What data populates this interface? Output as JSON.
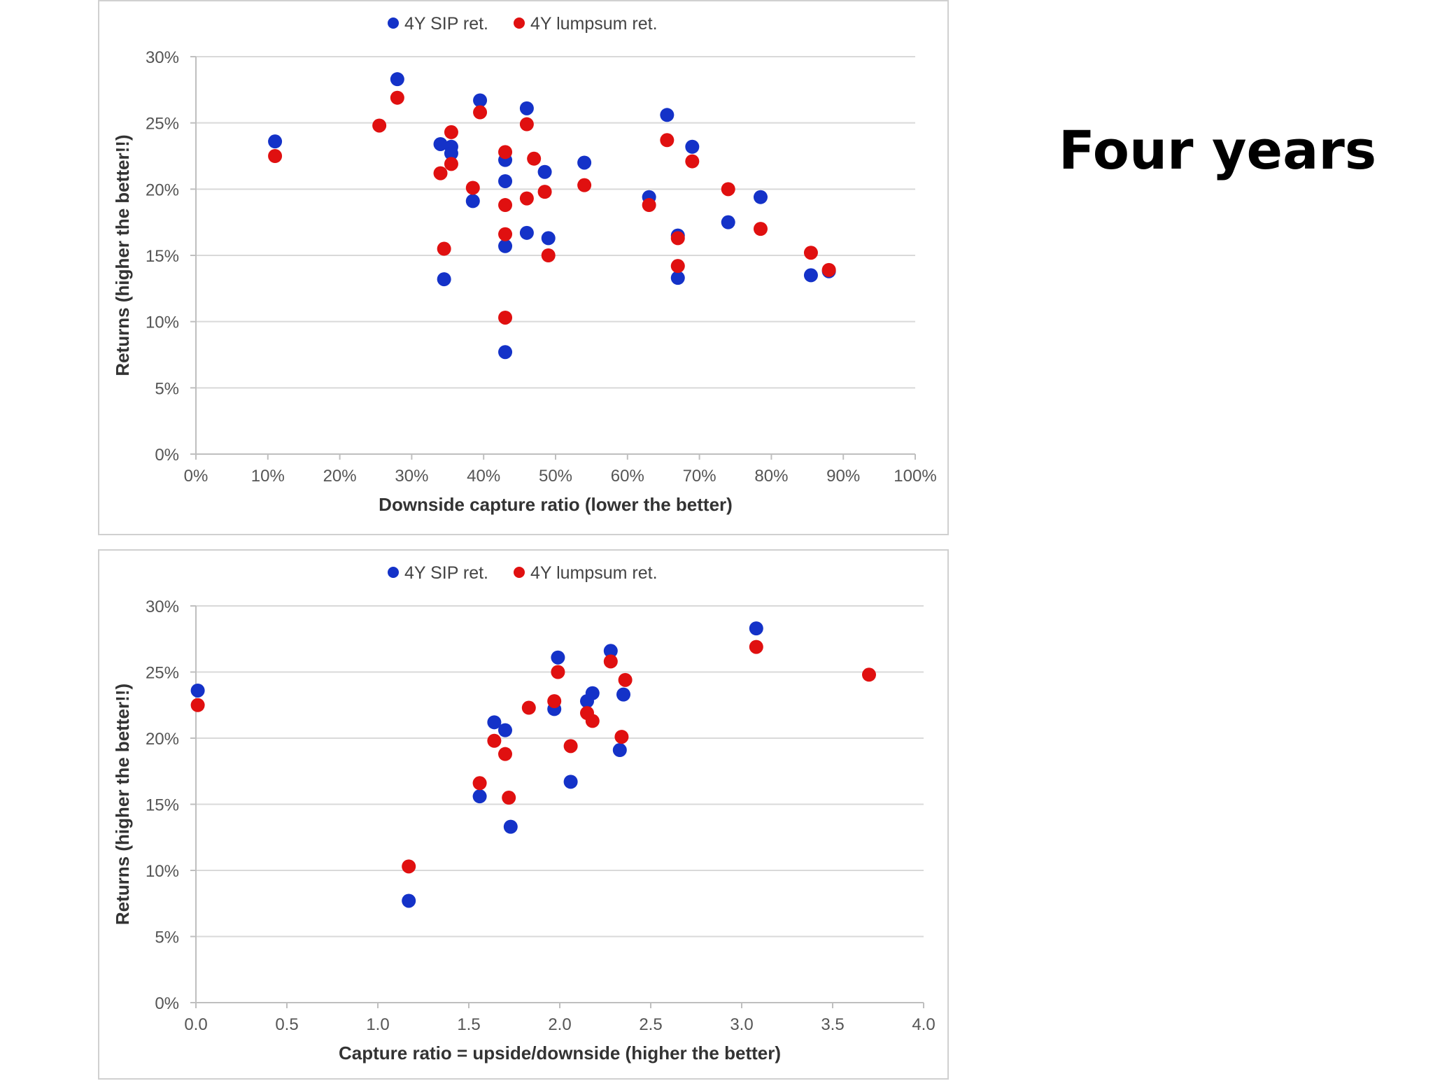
{
  "slide": {
    "title": "Four years"
  },
  "colors": {
    "sip": "#1432c8",
    "lumpsum": "#e01010",
    "gridline": "#d9d9d9",
    "axis": "#bfbfbf"
  },
  "chart_data": [
    {
      "type": "scatter",
      "title": "",
      "xlabel": "Downside capture ratio (lower the better)",
      "ylabel": "Returns (higher the better!!)",
      "xlim": [
        0,
        100
      ],
      "ylim": [
        0,
        30
      ],
      "xticks": [
        0,
        10,
        20,
        30,
        40,
        50,
        60,
        70,
        80,
        90,
        100
      ],
      "xtick_labels": [
        "0%",
        "10%",
        "20%",
        "30%",
        "40%",
        "50%",
        "60%",
        "70%",
        "80%",
        "90%",
        "100%"
      ],
      "yticks": [
        0,
        5,
        10,
        15,
        20,
        25,
        30
      ],
      "ytick_labels": [
        "0%",
        "5%",
        "10%",
        "15%",
        "20%",
        "25%",
        "30%"
      ],
      "grid": "horizontal",
      "legend_position": "top-center",
      "series": [
        {
          "name": "4Y SIP ret.",
          "color_key": "sip",
          "points": [
            [
              11,
              23.6
            ],
            [
              28,
              28.3
            ],
            [
              34,
              23.4
            ],
            [
              34.5,
              13.2
            ],
            [
              35.5,
              23.2
            ],
            [
              35.5,
              22.7
            ],
            [
              38.5,
              19.1
            ],
            [
              39.5,
              26.7
            ],
            [
              43,
              22.2
            ],
            [
              43,
              15.7
            ],
            [
              43,
              7.7
            ],
            [
              43,
              20.6
            ],
            [
              46,
              26.1
            ],
            [
              46,
              16.7
            ],
            [
              48.5,
              21.3
            ],
            [
              49,
              16.3
            ],
            [
              54,
              22.0
            ],
            [
              63,
              19.4
            ],
            [
              65.5,
              25.6
            ],
            [
              67,
              16.5
            ],
            [
              67,
              13.3
            ],
            [
              69,
              23.2
            ],
            [
              74,
              17.5
            ],
            [
              78.5,
              19.4
            ],
            [
              85.5,
              13.5
            ],
            [
              88,
              13.8
            ]
          ]
        },
        {
          "name": "4Y lumpsum ret.",
          "color_key": "lumpsum",
          "points": [
            [
              11,
              22.5
            ],
            [
              25.5,
              24.8
            ],
            [
              28,
              26.9
            ],
            [
              34,
              21.2
            ],
            [
              34.5,
              15.5
            ],
            [
              35.5,
              24.3
            ],
            [
              35.5,
              21.9
            ],
            [
              38.5,
              20.1
            ],
            [
              39.5,
              25.8
            ],
            [
              43,
              22.8
            ],
            [
              43,
              16.6
            ],
            [
              43,
              18.8
            ],
            [
              43,
              10.3
            ],
            [
              46,
              24.9
            ],
            [
              46,
              19.3
            ],
            [
              47,
              22.3
            ],
            [
              48.5,
              19.8
            ],
            [
              49,
              15.0
            ],
            [
              54,
              20.3
            ],
            [
              63,
              18.8
            ],
            [
              65.5,
              23.7
            ],
            [
              67,
              16.3
            ],
            [
              67,
              14.2
            ],
            [
              69,
              22.1
            ],
            [
              74,
              20.0
            ],
            [
              78.5,
              17.0
            ],
            [
              85.5,
              15.2
            ],
            [
              88,
              13.9
            ]
          ]
        }
      ]
    },
    {
      "type": "scatter",
      "title": "",
      "xlabel": "Capture ratio = upside/downside (higher the better)",
      "ylabel": "Returns (higher the better!!)",
      "xlim": [
        0,
        4
      ],
      "ylim": [
        0,
        30
      ],
      "xticks": [
        0,
        0.5,
        1,
        1.5,
        2,
        2.5,
        3,
        3.5,
        4
      ],
      "xtick_labels": [
        "0.0",
        "0.5",
        "1.0",
        "1.5",
        "2.0",
        "2.5",
        "3.0",
        "3.5",
        "4.0"
      ],
      "yticks": [
        0,
        5,
        10,
        15,
        20,
        25,
        30
      ],
      "ytick_labels": [
        "0%",
        "5%",
        "10%",
        "15%",
        "20%",
        "25%",
        "30%"
      ],
      "grid": "horizontal",
      "legend_position": "top-center",
      "series": [
        {
          "name": "4Y SIP ret.",
          "color_key": "sip",
          "points": [
            [
              0.01,
              23.6
            ],
            [
              1.17,
              7.7
            ],
            [
              1.56,
              15.6
            ],
            [
              1.64,
              21.2
            ],
            [
              1.7,
              20.6
            ],
            [
              1.73,
              13.3
            ],
            [
              1.97,
              22.2
            ],
            [
              1.99,
              26.1
            ],
            [
              2.06,
              16.7
            ],
            [
              2.15,
              22.8
            ],
            [
              2.18,
              23.4
            ],
            [
              2.28,
              26.6
            ],
            [
              2.33,
              19.1
            ],
            [
              2.35,
              23.3
            ],
            [
              3.08,
              28.3
            ]
          ]
        },
        {
          "name": "4Y lumpsum ret.",
          "color_key": "lumpsum",
          "points": [
            [
              0.01,
              22.5
            ],
            [
              1.17,
              10.3
            ],
            [
              1.56,
              16.6
            ],
            [
              1.64,
              19.8
            ],
            [
              1.7,
              18.8
            ],
            [
              1.72,
              15.5
            ],
            [
              1.83,
              22.3
            ],
            [
              1.97,
              22.8
            ],
            [
              1.99,
              25.0
            ],
            [
              2.06,
              19.4
            ],
            [
              2.15,
              21.9
            ],
            [
              2.18,
              21.3
            ],
            [
              2.28,
              25.8
            ],
            [
              2.34,
              20.1
            ],
            [
              2.36,
              24.4
            ],
            [
              3.08,
              26.9
            ],
            [
              3.7,
              24.8
            ]
          ]
        }
      ]
    }
  ]
}
